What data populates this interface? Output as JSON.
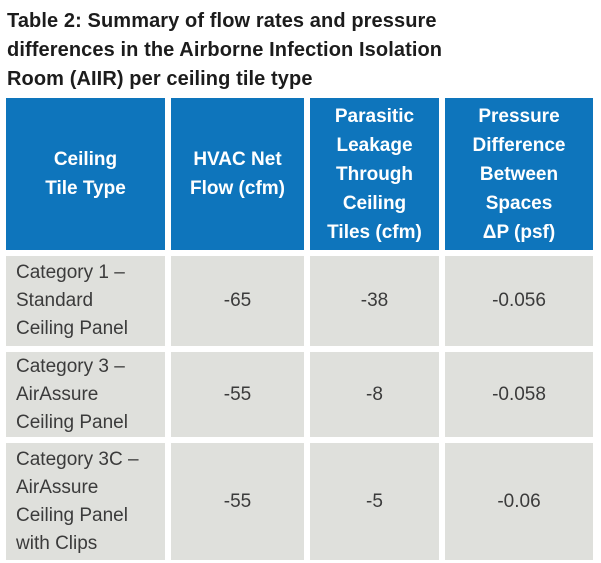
{
  "title": "Table 2: Summary of flow rates and pressure\ndifferences in the Airborne Infection Isolation\nRoom (AIIR) per ceiling tile type",
  "colors": {
    "header_background": "#0e75bc",
    "header_text": "#ffffff",
    "cell_background": "#dfe0dc",
    "body_text": "#3b3b3b",
    "title_text": "#1c1c1c"
  },
  "table": {
    "headers": [
      "Ceiling\nTile Type",
      "HVAC Net\nFlow (cfm)",
      "Parasitic\nLeakage\nThrough\nCeiling\nTiles (cfm)",
      "Pressure\nDifference\nBetween\nSpaces\nΔP (psf)"
    ],
    "rows": [
      {
        "cells": [
          "Category 1 –\nStandard\nCeiling Panel",
          "-65",
          "-38",
          "-0.056"
        ]
      },
      {
        "cells": [
          "Category 3 –\nAirAssure\nCeiling Panel",
          "-55",
          "-8",
          "-0.058"
        ]
      },
      {
        "cells": [
          "Category 3C –\nAirAssure\nCeiling Panel\nwith Clips",
          "-55",
          "-5",
          "-0.06"
        ]
      }
    ]
  }
}
